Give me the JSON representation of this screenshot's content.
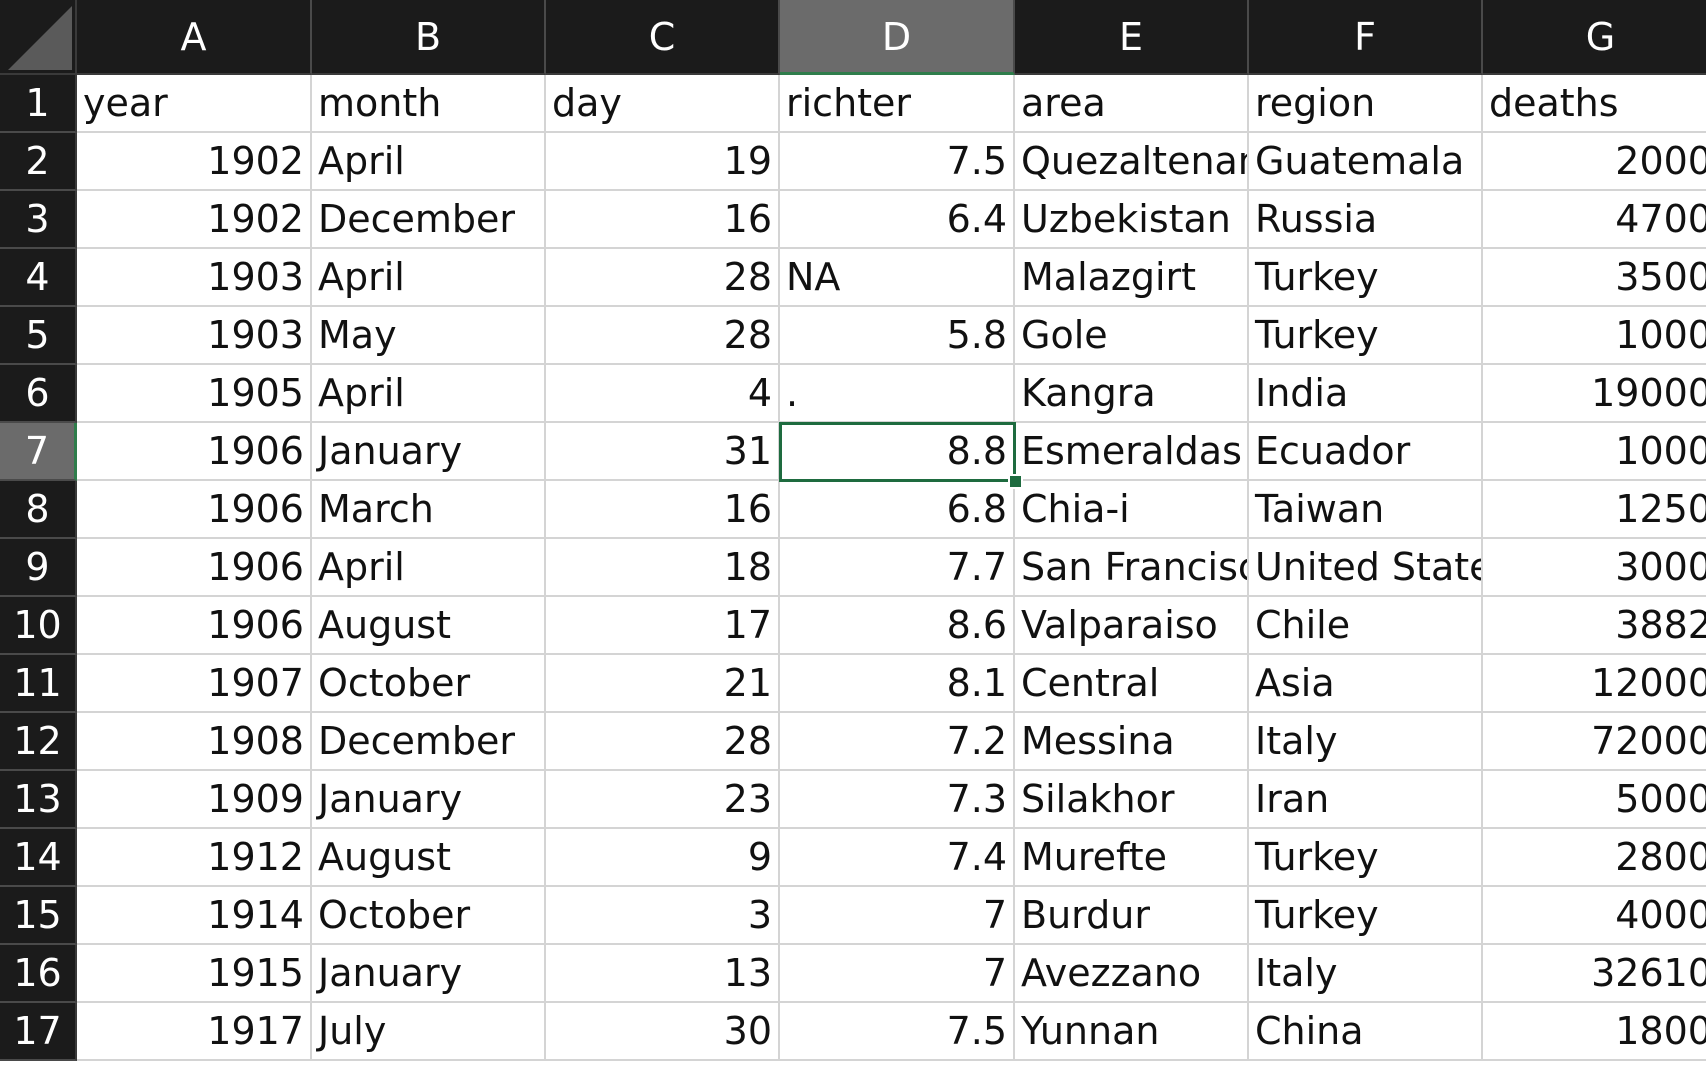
{
  "columns": [
    "A",
    "B",
    "C",
    "D",
    "E",
    "F",
    "G"
  ],
  "active_column": "D",
  "active_row": 7,
  "rows": [
    {
      "num": "1",
      "cells": [
        "year",
        "month",
        "day",
        "richter",
        "area",
        "region",
        "deaths"
      ]
    },
    {
      "num": "2",
      "cells": [
        "1902",
        "April",
        "19",
        "7.5",
        "Quezaltenango",
        "Guatemala",
        "2000"
      ]
    },
    {
      "num": "3",
      "cells": [
        "1902",
        "December",
        "16",
        "6.4",
        "Uzbekistan",
        "Russia",
        "4700"
      ]
    },
    {
      "num": "4",
      "cells": [
        "1903",
        "April",
        "28",
        "NA",
        "Malazgirt",
        "Turkey",
        "3500"
      ]
    },
    {
      "num": "5",
      "cells": [
        "1903",
        "May",
        "28",
        "5.8",
        "Gole",
        "Turkey",
        "1000"
      ]
    },
    {
      "num": "6",
      "cells": [
        "1905",
        "April",
        "4",
        ".",
        "Kangra",
        "India",
        "19000"
      ]
    },
    {
      "num": "7",
      "cells": [
        "1906",
        "January",
        "31",
        "8.8",
        "Esmeraldas (",
        "Ecuador",
        "1000"
      ]
    },
    {
      "num": "8",
      "cells": [
        "1906",
        "March",
        "16",
        "6.8",
        "Chia-i",
        "Taiwan",
        "1250"
      ]
    },
    {
      "num": "9",
      "cells": [
        "1906",
        "April",
        "18",
        "7.7",
        "San Francisco",
        "United States",
        "3000"
      ]
    },
    {
      "num": "10",
      "cells": [
        "1906",
        "August",
        "17",
        "8.6",
        "Valparaiso",
        "Chile",
        "3882"
      ]
    },
    {
      "num": "11",
      "cells": [
        "1907",
        "October",
        "21",
        "8.1",
        "Central",
        "Asia",
        "12000"
      ]
    },
    {
      "num": "12",
      "cells": [
        "1908",
        "December",
        "28",
        "7.2",
        "Messina",
        "Italy",
        "72000"
      ]
    },
    {
      "num": "13",
      "cells": [
        "1909",
        "January",
        "23",
        "7.3",
        "Silakhor",
        "Iran",
        "5000"
      ]
    },
    {
      "num": "14",
      "cells": [
        "1912",
        "August",
        "9",
        "7.4",
        "Murefte",
        "Turkey",
        "2800"
      ]
    },
    {
      "num": "15",
      "cells": [
        "1914",
        "October",
        "3",
        "7",
        "Burdur",
        "Turkey",
        "4000"
      ]
    },
    {
      "num": "16",
      "cells": [
        "1915",
        "January",
        "13",
        "7",
        "Avezzano",
        "Italy",
        "32610"
      ]
    },
    {
      "num": "17",
      "cells": [
        "1917",
        "July",
        "30",
        "7.5",
        "Yunnan",
        "China",
        "1800"
      ]
    }
  ]
}
